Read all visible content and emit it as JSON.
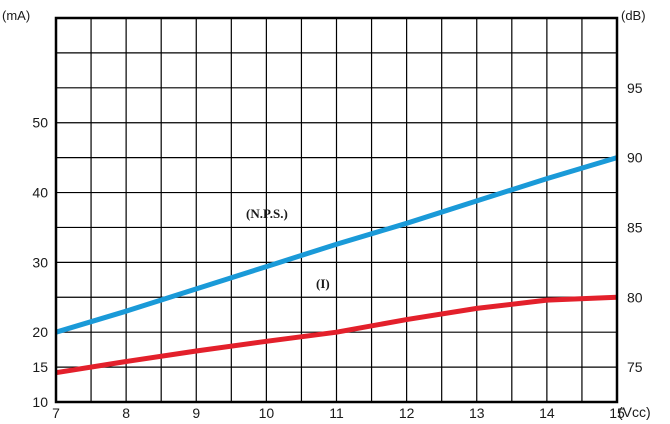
{
  "chart_data": {
    "type": "line",
    "x_ticks": [
      "7",
      "8",
      "9",
      "10",
      "11",
      "12",
      "13",
      "14",
      "15"
    ],
    "left_ticks": [
      "10",
      "15",
      "20",
      "30",
      "40",
      "50"
    ],
    "right_ticks": [
      "75",
      "80",
      "85",
      "90",
      "95"
    ],
    "left_unit": "(mA)",
    "right_unit": "(dB)",
    "x_unit": "(Vcc)",
    "xlim": [
      7,
      15
    ],
    "right_ylim": [
      70,
      97.5
    ],
    "grid": true,
    "series": [
      {
        "name": "(N.P.S.)",
        "axis": "right",
        "color": "#1a9ad8",
        "x": [
          7,
          8,
          9,
          10,
          11,
          12,
          13,
          14,
          15
        ],
        "y": [
          77.5,
          79.0,
          80.6,
          82.2,
          83.8,
          85.3,
          86.9,
          88.5,
          90.0
        ]
      },
      {
        "name": "(I)",
        "axis": "left",
        "color": "#e3202b",
        "x": [
          7,
          8,
          9,
          10,
          11,
          12,
          13,
          14,
          15
        ],
        "y": [
          14.2,
          15.8,
          17.3,
          18.7,
          20.0,
          21.8,
          23.4,
          24.6,
          25.0
        ]
      }
    ]
  }
}
